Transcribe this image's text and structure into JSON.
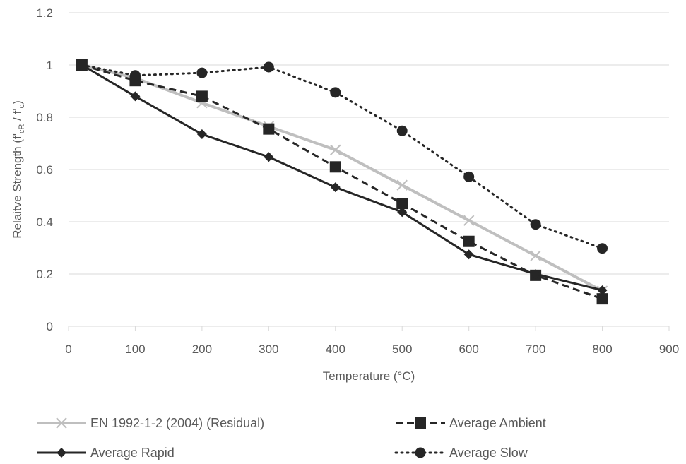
{
  "chart_data": {
    "type": "line",
    "xlabel": "Temperature (°C)",
    "ylabel": {
      "parts": [
        {
          "text": "Relaitve Strength (f'",
          "sub": false
        },
        {
          "text": "cR",
          "sub": true
        },
        {
          "text": " / f'",
          "sub": false
        },
        {
          "text": "c",
          "sub": true
        },
        {
          "text": ")",
          "sub": false
        }
      ]
    },
    "xlim": [
      0,
      900
    ],
    "ylim": [
      0,
      1.2
    ],
    "x_ticks": [
      "0",
      "100",
      "200",
      "300",
      "400",
      "500",
      "600",
      "700",
      "800",
      "900"
    ],
    "y_ticks": [
      "0",
      "0.2",
      "0.4",
      "0.6",
      "0.8",
      "1",
      "1.2"
    ],
    "grid": "horizontal",
    "legend_position": "bottom",
    "series": [
      {
        "name": "EN 1992-1-2 (2004) (Residual)",
        "color": "#bfbfbf",
        "line_style": "solid",
        "marker": "x",
        "x": [
          20,
          100,
          200,
          300,
          400,
          500,
          600,
          700,
          800
        ],
        "y": [
          1.0,
          0.95,
          0.855,
          0.765,
          0.675,
          0.54,
          0.405,
          0.27,
          0.135
        ]
      },
      {
        "name": "Average Ambient",
        "color": "#262626",
        "line_style": "dashed",
        "marker": "square",
        "x": [
          20,
          100,
          200,
          300,
          400,
          500,
          600,
          700,
          800
        ],
        "y": [
          1.0,
          0.94,
          0.88,
          0.755,
          0.61,
          0.47,
          0.325,
          0.195,
          0.105
        ]
      },
      {
        "name": "Average Rapid",
        "color": "#262626",
        "line_style": "solid",
        "marker": "diamond",
        "x": [
          20,
          100,
          200,
          300,
          400,
          500,
          600,
          700,
          800
        ],
        "y": [
          1.0,
          0.88,
          0.735,
          0.648,
          0.532,
          0.437,
          0.275,
          0.2,
          0.138
        ]
      },
      {
        "name": "Average Slow",
        "color": "#262626",
        "line_style": "dotted",
        "marker": "circle",
        "x": [
          20,
          100,
          200,
          300,
          400,
          500,
          600,
          700,
          800
        ],
        "y": [
          1.0,
          0.96,
          0.97,
          0.992,
          0.895,
          0.748,
          0.572,
          0.39,
          0.298
        ]
      }
    ]
  }
}
